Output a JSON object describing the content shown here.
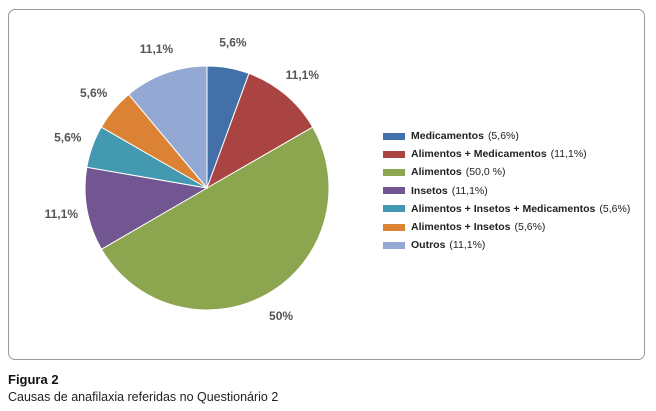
{
  "chart_data": {
    "type": "pie",
    "slices": [
      {
        "name": "Medicamentos",
        "legend_value": "(5,6%)",
        "label": "5,6%",
        "value": 5.6,
        "color": "#4370a8"
      },
      {
        "name": "Alimentos + Medicamentos",
        "legend_value": "(11,1%)",
        "label": "11,1%",
        "value": 11.1,
        "color": "#a94443"
      },
      {
        "name": "Alimentos",
        "legend_value": "(50,0 %)",
        "label": "50%",
        "value": 50.0,
        "color": "#8ba64e"
      },
      {
        "name": "Insetos",
        "legend_value": "(11,1%)",
        "label": "11,1%",
        "value": 11.1,
        "color": "#725692"
      },
      {
        "name": "Alimentos + Insetos + Medicamentos",
        "legend_value": "(5,6%)",
        "label": "5,6%",
        "value": 5.6,
        "color": "#4299b0"
      },
      {
        "name": "Alimentos + Insetos",
        "legend_value": "(5,6%)",
        "label": "5,6%",
        "value": 5.6,
        "color": "#db8235"
      },
      {
        "name": "Outros",
        "legend_value": "(11,1%)",
        "label": "11,1%",
        "value": 11.1,
        "color": "#93a9d3"
      }
    ],
    "legend_position": "right"
  },
  "caption": {
    "title": "Figura 2",
    "text": "Causas de anafilaxia referidas no Questionário 2"
  }
}
